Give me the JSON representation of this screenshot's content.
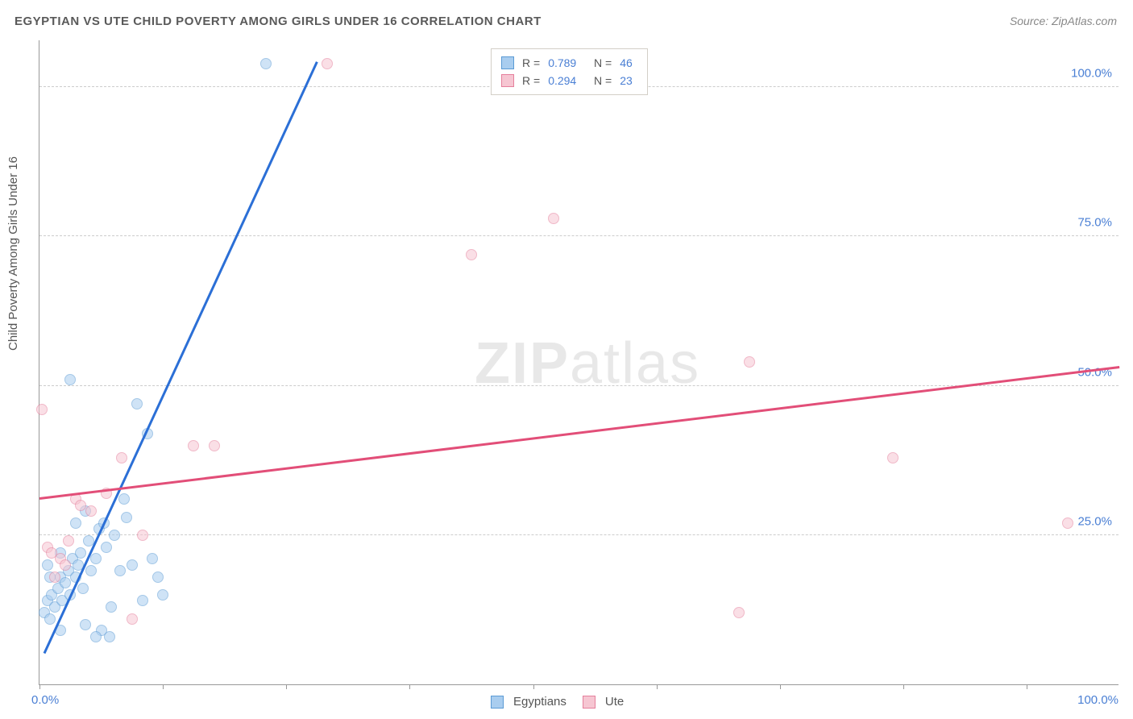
{
  "title": "EGYPTIAN VS UTE CHILD POVERTY AMONG GIRLS UNDER 16 CORRELATION CHART",
  "source": "Source: ZipAtlas.com",
  "ylabel": "Child Poverty Among Girls Under 16",
  "watermark_bold": "ZIP",
  "watermark_light": "atlas",
  "chart": {
    "type": "scatter",
    "background_color": "#ffffff",
    "grid_color": "#cccccc",
    "axis_color": "#999999",
    "value_color": "#4a7fd4",
    "label_color": "#555555",
    "xlim": [
      0,
      105
    ],
    "ylim": [
      0,
      108
    ],
    "yticks": [
      25,
      50,
      75,
      100
    ],
    "ytick_labels": [
      "25.0%",
      "50.0%",
      "75.0%",
      "100.0%"
    ],
    "xticks_lines": [
      0,
      12,
      24,
      36,
      48,
      60,
      72,
      84,
      96
    ],
    "xtick_left": "0.0%",
    "xtick_right": "100.0%",
    "marker_radius": 7,
    "marker_opacity": 0.55,
    "series": [
      {
        "name": "Egyptians",
        "fill": "#a9cdef",
        "stroke": "#5b9bd5",
        "R": "0.789",
        "N": "46",
        "trend": {
          "x1": 0.5,
          "y1": 5,
          "x2": 27,
          "y2": 104,
          "color": "#2b6fd6",
          "width": 3
        },
        "points": [
          [
            0.5,
            12
          ],
          [
            0.8,
            14
          ],
          [
            1,
            11
          ],
          [
            1.2,
            15
          ],
          [
            1.5,
            13
          ],
          [
            1.8,
            16
          ],
          [
            2,
            18
          ],
          [
            2.2,
            14
          ],
          [
            2.5,
            17
          ],
          [
            2.8,
            19
          ],
          [
            3,
            15
          ],
          [
            3.2,
            21
          ],
          [
            3.5,
            18
          ],
          [
            3.8,
            20
          ],
          [
            4,
            22
          ],
          [
            4.2,
            16
          ],
          [
            4.5,
            10
          ],
          [
            4.8,
            24
          ],
          [
            5,
            19
          ],
          [
            5.5,
            21
          ],
          [
            5.8,
            26
          ],
          [
            6,
            9
          ],
          [
            6.3,
            27
          ],
          [
            6.5,
            23
          ],
          [
            7,
            13
          ],
          [
            7.3,
            25
          ],
          [
            7.8,
            19
          ],
          [
            8.2,
            31
          ],
          [
            8.5,
            28
          ],
          [
            9,
            20
          ],
          [
            9.5,
            47
          ],
          [
            10,
            14
          ],
          [
            10.5,
            42
          ],
          [
            11,
            21
          ],
          [
            11.5,
            18
          ],
          [
            12,
            15
          ],
          [
            3,
            51
          ],
          [
            2,
            9
          ],
          [
            4.5,
            29
          ],
          [
            5.5,
            8
          ],
          [
            6.8,
            8
          ],
          [
            2,
            22
          ],
          [
            1,
            18
          ],
          [
            0.8,
            20
          ],
          [
            3.5,
            27
          ],
          [
            22,
            104
          ]
        ]
      },
      {
        "name": "Ute",
        "fill": "#f6c6d2",
        "stroke": "#e57f9c",
        "R": "0.294",
        "N": "23",
        "trend": {
          "x1": 0,
          "y1": 31,
          "x2": 105,
          "y2": 53,
          "color": "#e24e78",
          "width": 2.5
        },
        "points": [
          [
            0.2,
            46
          ],
          [
            0.8,
            23
          ],
          [
            1.2,
            22
          ],
          [
            2,
            21
          ],
          [
            2.5,
            20
          ],
          [
            3.5,
            31
          ],
          [
            4,
            30
          ],
          [
            5,
            29
          ],
          [
            6.5,
            32
          ],
          [
            8,
            38
          ],
          [
            10,
            25
          ],
          [
            15,
            40
          ],
          [
            17,
            40
          ],
          [
            28,
            104
          ],
          [
            42,
            72
          ],
          [
            50,
            78
          ],
          [
            69,
            54
          ],
          [
            68,
            12
          ],
          [
            83,
            38
          ],
          [
            100,
            27
          ],
          [
            1.5,
            18
          ],
          [
            2.8,
            24
          ],
          [
            9,
            11
          ]
        ]
      }
    ]
  },
  "legend_bottom": [
    {
      "label": "Egyptians",
      "fill": "#a9cdef",
      "stroke": "#5b9bd5"
    },
    {
      "label": "Ute",
      "fill": "#f6c6d2",
      "stroke": "#e57f9c"
    }
  ]
}
